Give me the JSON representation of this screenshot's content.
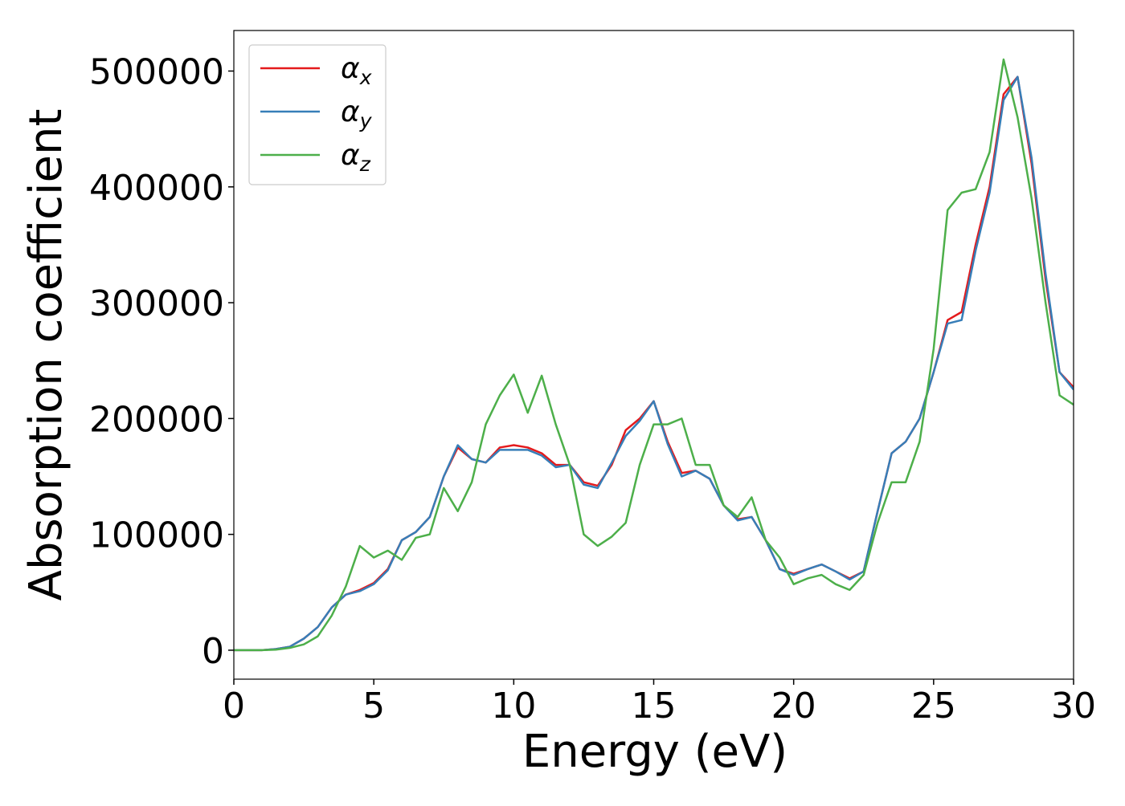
{
  "chart_data": {
    "type": "line",
    "xlabel": "Energy (eV)",
    "ylabel": "Absorption coefficient",
    "x": [
      0,
      0.5,
      1,
      1.5,
      2,
      2.5,
      3,
      3.5,
      4,
      4.5,
      5,
      5.5,
      6,
      6.5,
      7,
      7.5,
      8,
      8.5,
      9,
      9.5,
      10,
      10.5,
      11,
      11.5,
      12,
      12.5,
      13,
      13.5,
      14,
      14.5,
      15,
      15.5,
      16,
      16.5,
      17,
      17.5,
      18,
      18.5,
      19,
      19.5,
      20,
      20.5,
      21,
      21.5,
      22,
      22.5,
      23,
      23.5,
      24,
      24.5,
      25,
      25.5,
      26,
      26.5,
      27,
      27.5,
      28,
      28.5,
      29,
      29.5,
      30
    ],
    "series": [
      {
        "name": "αx",
        "color": "#e41a1c",
        "values": [
          0,
          0,
          0,
          1000,
          3000,
          10000,
          20000,
          37000,
          48000,
          52000,
          58000,
          70000,
          95000,
          102000,
          115000,
          150000,
          175000,
          165000,
          162000,
          175000,
          177000,
          175000,
          170000,
          160000,
          160000,
          145000,
          142000,
          160000,
          190000,
          200000,
          215000,
          180000,
          153000,
          155000,
          148000,
          125000,
          113000,
          115000,
          95000,
          70000,
          66000,
          70000,
          74000,
          68000,
          62000,
          68000,
          120000,
          170000,
          180000,
          200000,
          240000,
          285000,
          292000,
          350000,
          400000,
          480000,
          495000,
          420000,
          320000,
          240000,
          227000
        ]
      },
      {
        "name": "αy",
        "color": "#377eb8",
        "values": [
          0,
          0,
          0,
          1000,
          3000,
          10000,
          20000,
          37000,
          48000,
          51000,
          57000,
          69000,
          95000,
          102000,
          115000,
          150000,
          177000,
          165000,
          162000,
          173000,
          173000,
          173000,
          168000,
          158000,
          160000,
          143000,
          140000,
          162000,
          185000,
          198000,
          215000,
          178000,
          150000,
          155000,
          148000,
          125000,
          112000,
          115000,
          95000,
          70000,
          65000,
          70000,
          74000,
          68000,
          61000,
          68000,
          120000,
          170000,
          180000,
          200000,
          240000,
          282000,
          285000,
          345000,
          395000,
          475000,
          495000,
          425000,
          325000,
          240000,
          225000
        ]
      },
      {
        "name": "αz",
        "color": "#4daf4a",
        "values": [
          0,
          0,
          0,
          500,
          2000,
          5000,
          12000,
          30000,
          55000,
          90000,
          80000,
          86000,
          78000,
          97000,
          100000,
          140000,
          120000,
          145000,
          195000,
          220000,
          238000,
          205000,
          237000,
          195000,
          160000,
          100000,
          90000,
          98000,
          110000,
          160000,
          195000,
          195000,
          200000,
          160000,
          160000,
          125000,
          115000,
          132000,
          95000,
          80000,
          57000,
          62000,
          65000,
          57000,
          52000,
          65000,
          110000,
          145000,
          145000,
          180000,
          260000,
          380000,
          395000,
          398000,
          430000,
          510000,
          460000,
          390000,
          300000,
          220000,
          212000
        ]
      }
    ],
    "xlim": [
      0,
      30
    ],
    "xticks": [
      0,
      5,
      10,
      15,
      20,
      25,
      30
    ],
    "ylim": [
      -25000,
      535000
    ],
    "yticks": [
      0,
      100000,
      200000,
      300000,
      400000,
      500000
    ],
    "legend": "upper left",
    "grid": false
  }
}
